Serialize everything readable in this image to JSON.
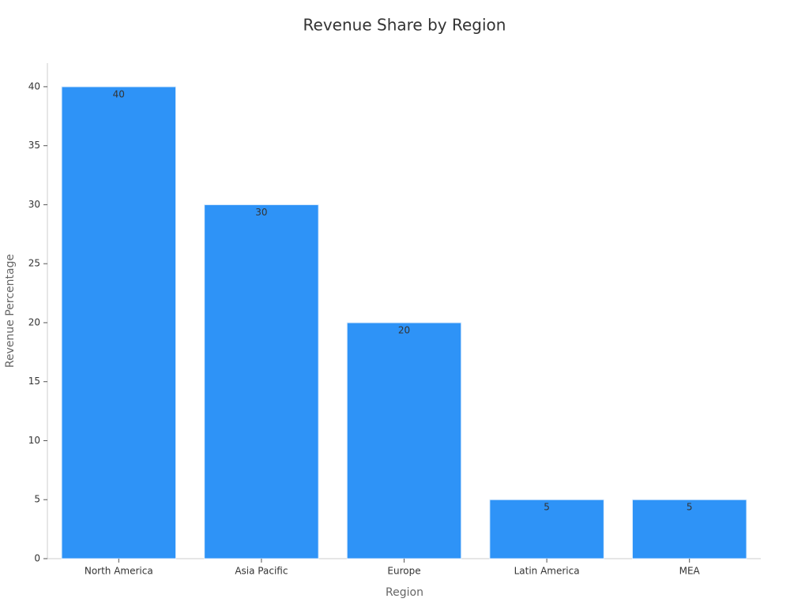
{
  "chart_data": {
    "type": "bar",
    "title": "Revenue Share by Region",
    "x_label": "Region",
    "y_label": "Revenue Percentage",
    "categories": [
      "North America",
      "Asia Pacific",
      "Europe",
      "Latin America",
      "MEA"
    ],
    "values": [
      40,
      30,
      20,
      5,
      5
    ],
    "color": "#2e93f7",
    "ylim": [
      0,
      42
    ],
    "yticks": [
      0,
      5,
      10,
      15,
      20,
      25,
      30,
      35,
      40
    ],
    "grid": false
  }
}
